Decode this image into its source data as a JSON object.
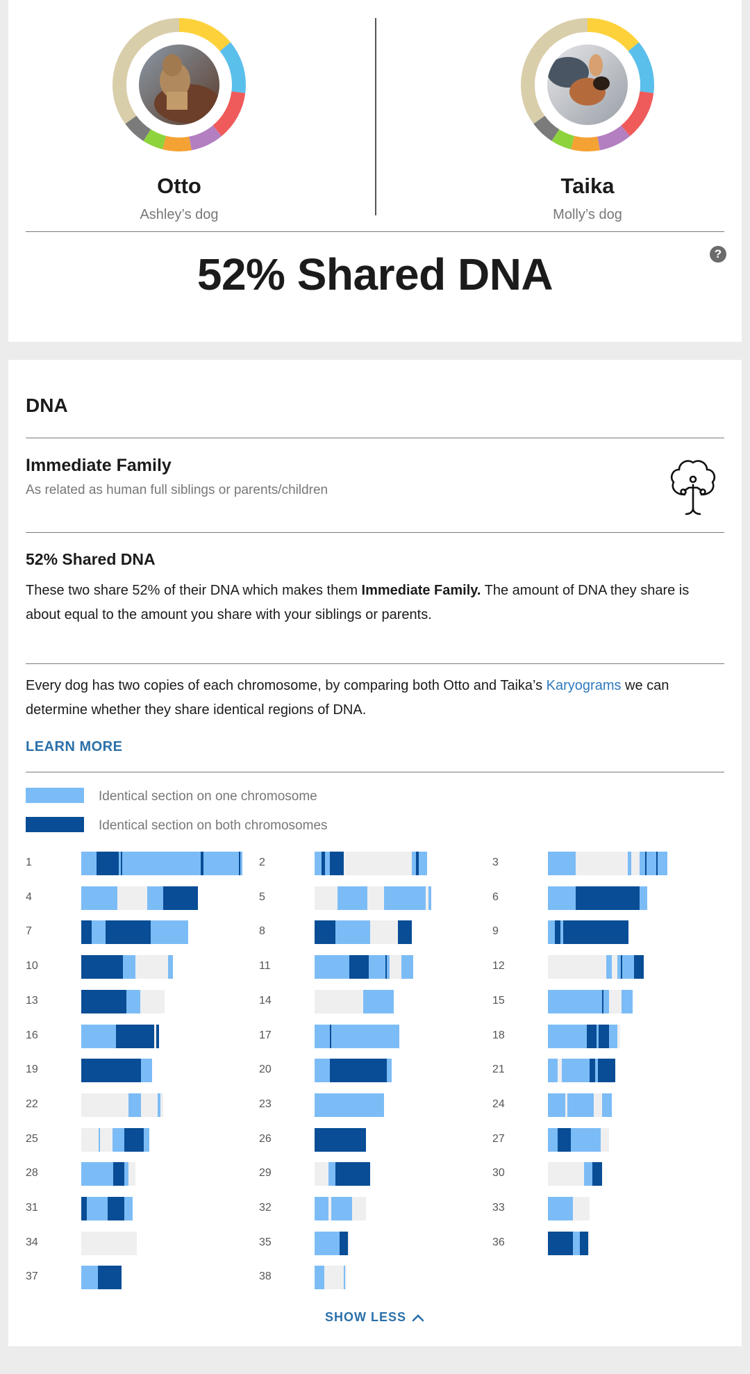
{
  "dogs": [
    {
      "name": "Otto",
      "owner": "Ashley’s dog"
    },
    {
      "name": "Taika",
      "owner": "Molly’s dog"
    }
  ],
  "ring_colors": [
    "#fdd13a",
    "#5bbfec",
    "#ef5b5b",
    "#b37fc0",
    "#f4a233",
    "#8dd33c",
    "#7b7b7b",
    "#d9ceaa"
  ],
  "header": {
    "title": "52% Shared DNA",
    "help_label": "?"
  },
  "dna": {
    "section_title": "DNA",
    "relationship": {
      "title": "Immediate Family",
      "subtitle": "As related as human full siblings or parents/children",
      "icon": "family-tree-icon"
    },
    "shared_title": "52% Shared DNA",
    "shared_text_1": "These two share 52% of their DNA which makes them ",
    "shared_text_bold": "Immediate Family.",
    "shared_text_2": " The amount of DNA they share is about equal to the amount you share with your siblings or parents.",
    "karyo_text_1": "Every dog has two copies of each chromosome, by comparing both Otto and Taika’s ",
    "karyo_link": "Karyograms",
    "karyo_text_2": " we can determine whether they share identical regions of DNA.",
    "learn_more": "LEARN MORE",
    "legend": {
      "one": "Identical section on one chromosome",
      "both": "Identical section on both chromosomes",
      "one_color": "#7cbcf6",
      "both_color": "#084d96",
      "none_color": "#efefef"
    },
    "show_less": "SHOW LESS"
  },
  "chart_data": {
    "type": "table",
    "note": "Segments per chromosome in units of length; o = identical on one chromosome, b = identical on both",
    "chromosomes": [
      {
        "n": "1",
        "len": 232,
        "segs": [
          [
            0,
            232,
            "o"
          ],
          [
            22,
            54,
            "b"
          ],
          [
            57,
            59,
            "b"
          ],
          [
            172,
            176,
            "b"
          ],
          [
            227,
            229,
            "b"
          ]
        ]
      },
      {
        "n": "2",
        "len": 162,
        "segs": [
          [
            0,
            10,
            "o"
          ],
          [
            10,
            15,
            "b"
          ],
          [
            15,
            22,
            "o"
          ],
          [
            22,
            42,
            "b"
          ],
          [
            140,
            146,
            "o"
          ],
          [
            146,
            150,
            "b"
          ],
          [
            150,
            162,
            "o"
          ]
        ]
      },
      {
        "n": "3",
        "len": 172,
        "segs": [
          [
            0,
            40,
            "o"
          ],
          [
            115,
            120,
            "o"
          ],
          [
            132,
            140,
            "o"
          ],
          [
            140,
            142,
            "b"
          ],
          [
            142,
            156,
            "o"
          ],
          [
            156,
            158,
            "b"
          ],
          [
            158,
            172,
            "o"
          ]
        ]
      },
      {
        "n": "4",
        "len": 168,
        "segs": [
          [
            0,
            52,
            "o"
          ],
          [
            95,
            118,
            "o"
          ],
          [
            118,
            168,
            "b"
          ]
        ]
      },
      {
        "n": "5",
        "len": 168,
        "segs": [
          [
            33,
            76,
            "o"
          ],
          [
            100,
            160,
            "o"
          ],
          [
            164,
            168,
            "o"
          ]
        ]
      },
      {
        "n": "6",
        "len": 143,
        "segs": [
          [
            0,
            40,
            "o"
          ],
          [
            40,
            132,
            "b"
          ],
          [
            132,
            143,
            "o"
          ]
        ]
      },
      {
        "n": "7",
        "len": 154,
        "segs": [
          [
            0,
            15,
            "b"
          ],
          [
            15,
            35,
            "o"
          ],
          [
            35,
            100,
            "b"
          ],
          [
            100,
            154,
            "o"
          ]
        ]
      },
      {
        "n": "8",
        "len": 140,
        "segs": [
          [
            0,
            30,
            "b"
          ],
          [
            30,
            80,
            "o"
          ],
          [
            120,
            140,
            "b"
          ]
        ]
      },
      {
        "n": "9",
        "len": 116,
        "segs": [
          [
            0,
            10,
            "o"
          ],
          [
            10,
            18,
            "b"
          ],
          [
            18,
            22,
            "o"
          ],
          [
            22,
            116,
            "b"
          ]
        ]
      },
      {
        "n": "10",
        "len": 132,
        "segs": [
          [
            0,
            60,
            "b"
          ],
          [
            60,
            78,
            "o"
          ],
          [
            125,
            132,
            "o"
          ]
        ]
      },
      {
        "n": "11",
        "len": 142,
        "segs": [
          [
            0,
            50,
            "o"
          ],
          [
            50,
            78,
            "b"
          ],
          [
            78,
            102,
            "o"
          ],
          [
            102,
            104,
            "b"
          ],
          [
            104,
            108,
            "o"
          ],
          [
            125,
            142,
            "o"
          ]
        ]
      },
      {
        "n": "12",
        "len": 138,
        "segs": [
          [
            84,
            92,
            "o"
          ],
          [
            100,
            105,
            "o"
          ],
          [
            105,
            107,
            "b"
          ],
          [
            107,
            124,
            "o"
          ],
          [
            124,
            138,
            "b"
          ]
        ]
      },
      {
        "n": "13",
        "len": 120,
        "segs": [
          [
            0,
            65,
            "b"
          ],
          [
            65,
            85,
            "o"
          ]
        ]
      },
      {
        "n": "14",
        "len": 114,
        "segs": [
          [
            70,
            114,
            "o"
          ]
        ]
      },
      {
        "n": "15",
        "len": 122,
        "segs": [
          [
            0,
            78,
            "o"
          ],
          [
            78,
            80,
            "b"
          ],
          [
            80,
            88,
            "o"
          ],
          [
            106,
            122,
            "o"
          ]
        ]
      },
      {
        "n": "16",
        "len": 112,
        "segs": [
          [
            0,
            50,
            "o"
          ],
          [
            50,
            105,
            "b"
          ],
          [
            108,
            112,
            "b"
          ]
        ]
      },
      {
        "n": "17",
        "len": 122,
        "segs": [
          [
            0,
            22,
            "o"
          ],
          [
            22,
            24,
            "b"
          ],
          [
            24,
            122,
            "o"
          ]
        ]
      },
      {
        "n": "18",
        "len": 104,
        "segs": [
          [
            0,
            56,
            "o"
          ],
          [
            56,
            70,
            "b"
          ],
          [
            70,
            73,
            "o"
          ],
          [
            73,
            88,
            "b"
          ],
          [
            88,
            100,
            "o"
          ]
        ]
      },
      {
        "n": "19",
        "len": 102,
        "segs": [
          [
            0,
            86,
            "b"
          ],
          [
            86,
            102,
            "o"
          ]
        ]
      },
      {
        "n": "20",
        "len": 111,
        "segs": [
          [
            0,
            22,
            "o"
          ],
          [
            22,
            104,
            "b"
          ],
          [
            104,
            111,
            "o"
          ]
        ]
      },
      {
        "n": "21",
        "len": 97,
        "segs": [
          [
            0,
            14,
            "o"
          ],
          [
            20,
            60,
            "o"
          ],
          [
            60,
            68,
            "b"
          ],
          [
            68,
            72,
            "o"
          ],
          [
            72,
            97,
            "b"
          ]
        ]
      },
      {
        "n": "22",
        "len": 118,
        "segs": [
          [
            68,
            86,
            "o"
          ],
          [
            110,
            114,
            "o"
          ]
        ]
      },
      {
        "n": "23",
        "len": 100,
        "segs": [
          [
            0,
            100,
            "o"
          ]
        ]
      },
      {
        "n": "24",
        "len": 92,
        "segs": [
          [
            0,
            25,
            "o"
          ],
          [
            28,
            66,
            "o"
          ],
          [
            78,
            92,
            "o"
          ]
        ]
      },
      {
        "n": "25",
        "len": 98,
        "segs": [
          [
            25,
            27,
            "o"
          ],
          [
            45,
            62,
            "o"
          ],
          [
            62,
            90,
            "b"
          ],
          [
            90,
            98,
            "o"
          ]
        ]
      },
      {
        "n": "26",
        "len": 74,
        "segs": [
          [
            0,
            74,
            "b"
          ]
        ]
      },
      {
        "n": "27",
        "len": 88,
        "segs": [
          [
            0,
            14,
            "o"
          ],
          [
            14,
            33,
            "b"
          ],
          [
            33,
            76,
            "o"
          ]
        ]
      },
      {
        "n": "28",
        "len": 78,
        "segs": [
          [
            0,
            46,
            "o"
          ],
          [
            46,
            62,
            "b"
          ],
          [
            62,
            68,
            "o"
          ]
        ]
      },
      {
        "n": "29",
        "len": 80,
        "segs": [
          [
            20,
            30,
            "o"
          ],
          [
            30,
            80,
            "b"
          ]
        ]
      },
      {
        "n": "30",
        "len": 78,
        "segs": [
          [
            52,
            64,
            "o"
          ],
          [
            64,
            78,
            "b"
          ]
        ]
      },
      {
        "n": "31",
        "len": 74,
        "segs": [
          [
            0,
            8,
            "b"
          ],
          [
            8,
            38,
            "o"
          ],
          [
            38,
            62,
            "b"
          ],
          [
            62,
            74,
            "o"
          ]
        ]
      },
      {
        "n": "32",
        "len": 74,
        "segs": [
          [
            0,
            20,
            "o"
          ],
          [
            24,
            54,
            "o"
          ]
        ]
      },
      {
        "n": "33",
        "len": 60,
        "segs": [
          [
            0,
            36,
            "o"
          ]
        ]
      },
      {
        "n": "34",
        "len": 80,
        "segs": []
      },
      {
        "n": "35",
        "len": 50,
        "segs": [
          [
            0,
            36,
            "o"
          ],
          [
            36,
            48,
            "b"
          ]
        ]
      },
      {
        "n": "36",
        "len": 60,
        "segs": [
          [
            0,
            36,
            "b"
          ],
          [
            36,
            46,
            "o"
          ],
          [
            46,
            58,
            "b"
          ]
        ]
      },
      {
        "n": "37",
        "len": 58,
        "segs": [
          [
            0,
            24,
            "o"
          ],
          [
            24,
            58,
            "b"
          ]
        ]
      },
      {
        "n": "38",
        "len": 46,
        "segs": [
          [
            0,
            14,
            "o"
          ],
          [
            42,
            44,
            "o"
          ]
        ]
      }
    ]
  }
}
